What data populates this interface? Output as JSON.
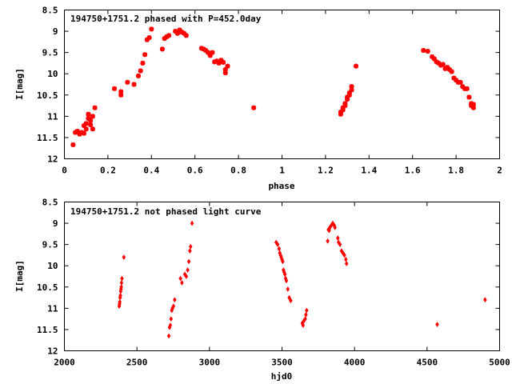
{
  "chart_data": [
    {
      "type": "scatter",
      "title": "194750+1751.2 phased with P=452.0day",
      "xlabel": "phase",
      "ylabel": "I[mag]",
      "xlim": [
        0,
        2
      ],
      "ylim": [
        12,
        8.5
      ],
      "y_inverted": true,
      "grid": false,
      "marker_color": "#ff0000",
      "xticks": [
        "0",
        "0.2",
        "0.4",
        "0.6",
        "0.8",
        "1",
        "1.2",
        "1.4",
        "1.6",
        "1.8",
        "2"
      ],
      "xtick_values": [
        0,
        0.2,
        0.4,
        0.6,
        0.8,
        1.0,
        1.2,
        1.4,
        1.6,
        1.8,
        2.0
      ],
      "yticks": [
        "8.5",
        "9",
        "9.5",
        "10",
        "10.5",
        "11",
        "11.5",
        "12"
      ],
      "ytick_values": [
        8.5,
        9,
        9.5,
        10,
        10.5,
        11,
        11.5,
        12
      ],
      "points": [
        [
          0.04,
          11.67
        ],
        [
          0.05,
          11.38
        ],
        [
          0.06,
          11.35
        ],
        [
          0.07,
          11.42
        ],
        [
          0.08,
          11.38
        ],
        [
          0.09,
          11.4
        ],
        [
          0.09,
          11.22
        ],
        [
          0.1,
          11.17
        ],
        [
          0.1,
          11.3
        ],
        [
          0.11,
          11.05
        ],
        [
          0.11,
          10.95
        ],
        [
          0.12,
          11.1
        ],
        [
          0.12,
          11.2
        ],
        [
          0.13,
          11.0
        ],
        [
          0.13,
          11.3
        ],
        [
          0.14,
          10.8
        ],
        [
          0.23,
          10.35
        ],
        [
          0.26,
          10.5
        ],
        [
          0.26,
          10.42
        ],
        [
          0.29,
          10.2
        ],
        [
          0.32,
          10.25
        ],
        [
          0.34,
          10.05
        ],
        [
          0.35,
          9.93
        ],
        [
          0.36,
          9.75
        ],
        [
          0.37,
          9.55
        ],
        [
          0.38,
          9.2
        ],
        [
          0.39,
          9.15
        ],
        [
          0.4,
          8.95
        ],
        [
          0.45,
          9.42
        ],
        [
          0.46,
          9.17
        ],
        [
          0.47,
          9.13
        ],
        [
          0.48,
          9.1
        ],
        [
          0.51,
          9.0
        ],
        [
          0.52,
          9.05
        ],
        [
          0.53,
          8.97
        ],
        [
          0.54,
          9.02
        ],
        [
          0.55,
          9.05
        ],
        [
          0.56,
          9.1
        ],
        [
          0.63,
          9.4
        ],
        [
          0.64,
          9.42
        ],
        [
          0.65,
          9.45
        ],
        [
          0.66,
          9.5
        ],
        [
          0.67,
          9.57
        ],
        [
          0.68,
          9.5
        ],
        [
          0.69,
          9.72
        ],
        [
          0.7,
          9.7
        ],
        [
          0.71,
          9.75
        ],
        [
          0.72,
          9.68
        ],
        [
          0.73,
          9.73
        ],
        [
          0.74,
          9.9
        ],
        [
          0.74,
          9.98
        ],
        [
          0.75,
          9.82
        ],
        [
          0.87,
          10.8
        ],
        [
          1.27,
          10.95
        ],
        [
          1.27,
          10.9
        ],
        [
          1.28,
          10.85
        ],
        [
          1.28,
          10.8
        ],
        [
          1.29,
          10.75
        ],
        [
          1.29,
          10.7
        ],
        [
          1.3,
          10.6
        ],
        [
          1.3,
          10.55
        ],
        [
          1.31,
          10.5
        ],
        [
          1.31,
          10.45
        ],
        [
          1.32,
          10.38
        ],
        [
          1.32,
          10.3
        ],
        [
          1.34,
          9.82
        ],
        [
          1.65,
          9.45
        ],
        [
          1.67,
          9.47
        ],
        [
          1.69,
          9.6
        ],
        [
          1.7,
          9.65
        ],
        [
          1.71,
          9.72
        ],
        [
          1.72,
          9.75
        ],
        [
          1.73,
          9.8
        ],
        [
          1.74,
          9.78
        ],
        [
          1.75,
          9.88
        ],
        [
          1.76,
          9.85
        ],
        [
          1.77,
          9.9
        ],
        [
          1.78,
          9.95
        ],
        [
          1.79,
          10.1
        ],
        [
          1.8,
          10.15
        ],
        [
          1.81,
          10.2
        ],
        [
          1.82,
          10.2
        ],
        [
          1.83,
          10.3
        ],
        [
          1.84,
          10.35
        ],
        [
          1.85,
          10.35
        ],
        [
          1.86,
          10.55
        ],
        [
          1.87,
          10.7
        ],
        [
          1.87,
          10.75
        ],
        [
          1.88,
          10.8
        ],
        [
          1.88,
          10.72
        ]
      ]
    },
    {
      "type": "scatter",
      "title": "194750+1751.2 not phased light curve",
      "xlabel": "hjd0",
      "ylabel": "I[mag]",
      "xlim": [
        2000,
        5000
      ],
      "ylim": [
        12,
        8.5
      ],
      "y_inverted": true,
      "grid": false,
      "marker_color": "#ff0000",
      "xticks": [
        "2000",
        "2500",
        "3000",
        "3500",
        "4000",
        "4500",
        "5000"
      ],
      "xtick_values": [
        2000,
        2500,
        3000,
        3500,
        4000,
        4500,
        5000
      ],
      "yticks": [
        "8.5",
        "9",
        "9.5",
        "10",
        "10.5",
        "11",
        "11.5",
        "12"
      ],
      "ytick_values": [
        8.5,
        9,
        9.5,
        10,
        10.5,
        11,
        11.5,
        12
      ],
      "points": [
        [
          2378,
          10.95
        ],
        [
          2380,
          10.9
        ],
        [
          2382,
          10.85
        ],
        [
          2384,
          10.75
        ],
        [
          2386,
          10.7
        ],
        [
          2388,
          10.6
        ],
        [
          2390,
          10.55
        ],
        [
          2392,
          10.5
        ],
        [
          2394,
          10.4
        ],
        [
          2397,
          10.3
        ],
        [
          2410,
          9.8
        ],
        [
          2720,
          11.65
        ],
        [
          2725,
          11.45
        ],
        [
          2730,
          11.4
        ],
        [
          2735,
          11.25
        ],
        [
          2740,
          11.05
        ],
        [
          2745,
          11.0
        ],
        [
          2752,
          10.95
        ],
        [
          2760,
          10.8
        ],
        [
          2800,
          10.3
        ],
        [
          2810,
          10.4
        ],
        [
          2830,
          10.2
        ],
        [
          2840,
          10.25
        ],
        [
          2850,
          10.1
        ],
        [
          2858,
          9.9
        ],
        [
          2865,
          9.65
        ],
        [
          2870,
          9.55
        ],
        [
          2880,
          9.0
        ],
        [
          3460,
          9.45
        ],
        [
          3470,
          9.5
        ],
        [
          3480,
          9.6
        ],
        [
          3485,
          9.7
        ],
        [
          3490,
          9.75
        ],
        [
          3495,
          9.8
        ],
        [
          3500,
          9.85
        ],
        [
          3505,
          9.9
        ],
        [
          3510,
          10.1
        ],
        [
          3515,
          10.15
        ],
        [
          3520,
          10.2
        ],
        [
          3525,
          10.3
        ],
        [
          3530,
          10.35
        ],
        [
          3540,
          10.55
        ],
        [
          3550,
          10.75
        ],
        [
          3560,
          10.82
        ],
        [
          3640,
          11.35
        ],
        [
          3645,
          11.4
        ],
        [
          3650,
          11.3
        ],
        [
          3660,
          11.25
        ],
        [
          3665,
          11.15
        ],
        [
          3670,
          11.05
        ],
        [
          3815,
          9.42
        ],
        [
          3820,
          9.15
        ],
        [
          3825,
          9.17
        ],
        [
          3830,
          9.1
        ],
        [
          3840,
          9.05
        ],
        [
          3850,
          9.0
        ],
        [
          3860,
          9.05
        ],
        [
          3865,
          9.1
        ],
        [
          3885,
          9.35
        ],
        [
          3890,
          9.45
        ],
        [
          3900,
          9.5
        ],
        [
          3910,
          9.65
        ],
        [
          3920,
          9.7
        ],
        [
          3930,
          9.75
        ],
        [
          3940,
          9.85
        ],
        [
          3945,
          9.95
        ],
        [
          4570,
          11.38
        ],
        [
          4900,
          10.8
        ]
      ]
    }
  ]
}
